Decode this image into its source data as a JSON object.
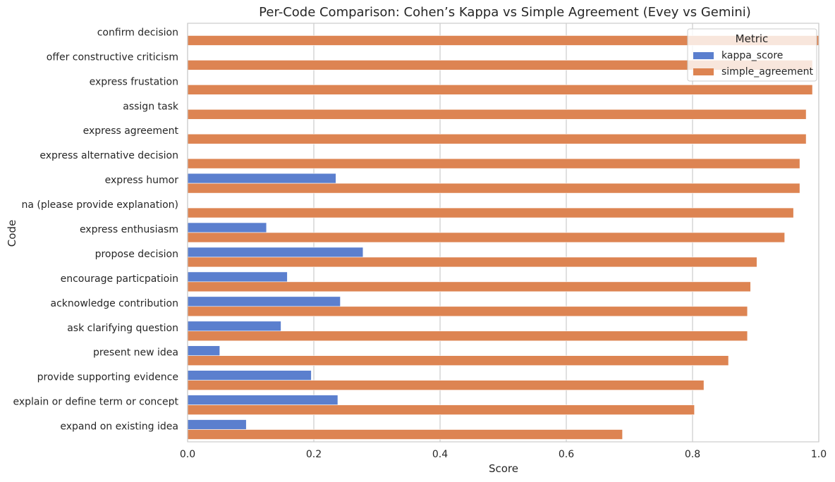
{
  "chart_data": {
    "type": "bar",
    "orientation": "horizontal",
    "title": "Per-Code Comparison: Cohen’s Kappa vs Simple Agreement (Evey vs Gemini)",
    "xlabel": "Score",
    "ylabel": "Code",
    "xlim": [
      0,
      1
    ],
    "xticks": [
      "0.0",
      "0.2",
      "0.4",
      "0.6",
      "0.8",
      "1.0"
    ],
    "grid": "vertical",
    "legend": {
      "title": "Metric",
      "placement": "top-right"
    },
    "categories": [
      "confirm decision",
      "offer constructive criticism",
      "express frustation",
      "assign task",
      "express agreement",
      "express alternative decision",
      "express humor",
      "na (please provide explanation)",
      "express enthusiasm",
      "propose decision",
      "encourage particpatioin",
      "acknowledge contribution",
      "ask clarifying question",
      "present new idea",
      "provide supporting evidence",
      "explain or define term or concept",
      "expand on existing idea"
    ],
    "series": [
      {
        "name": "kappa_score",
        "color": "#5b7fce",
        "values": [
          0,
          0,
          0,
          0,
          0,
          0,
          0.235,
          0,
          0.125,
          0.278,
          0.158,
          0.242,
          0.148,
          0.051,
          0.196,
          0.238,
          0.093
        ]
      },
      {
        "name": "simple_agreement",
        "color": "#dd8452",
        "values": [
          1.0,
          0.99,
          0.99,
          0.98,
          0.98,
          0.97,
          0.97,
          0.96,
          0.946,
          0.902,
          0.892,
          0.887,
          0.887,
          0.857,
          0.818,
          0.803,
          0.689
        ]
      }
    ]
  }
}
